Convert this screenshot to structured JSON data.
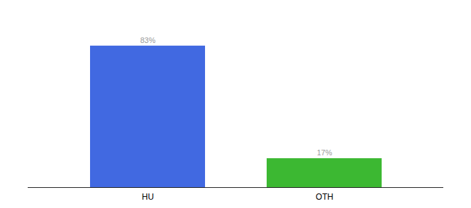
{
  "chart_data": {
    "type": "bar",
    "categories": [
      "HU",
      "OTH"
    ],
    "values": [
      83,
      17
    ],
    "value_labels": [
      "83%",
      "17%"
    ],
    "colors": [
      "#4169E1",
      "#3CB832"
    ],
    "ylim": [
      0,
      100
    ],
    "data_labels": true,
    "tick_labels": "x"
  }
}
